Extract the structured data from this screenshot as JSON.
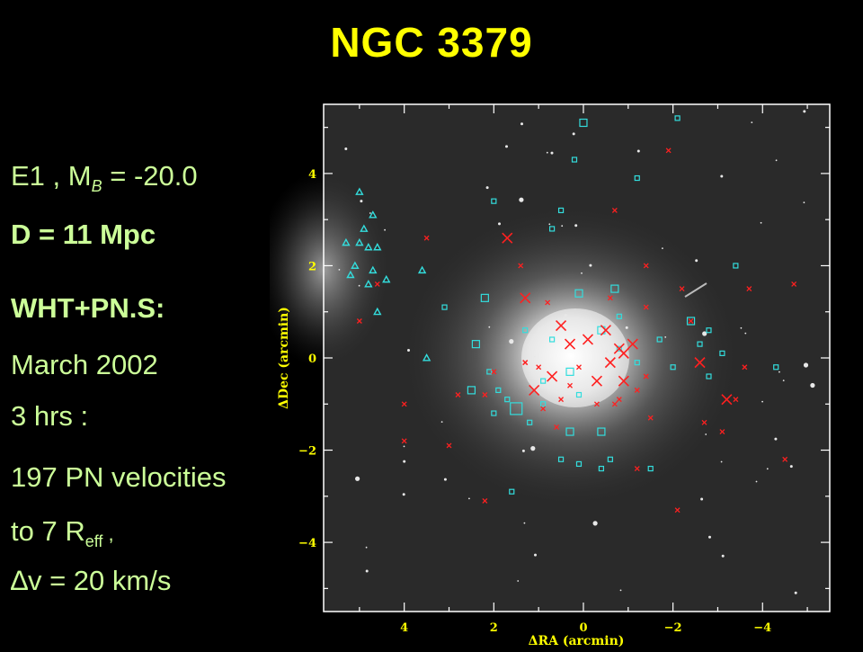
{
  "title": "NGC 3379",
  "info": {
    "type_prefix": "E1 ,  M",
    "mag_sub": "B",
    "mag_value": " = -20.0",
    "distance": "D = 11 Mpc",
    "instrument": "WHT+PN.S:",
    "date": "March 2002",
    "duration": "3 hrs :",
    "pn_count": "197 PN velocities",
    "reach_prefix": " to 7 R",
    "reach_sub": "eff",
    "reach_suffix": " ,",
    "dv_symbol": "∆",
    "dv_rest": "v = 20 km/s"
  },
  "chart_data": {
    "type": "scatter",
    "xlabel": "ΔRA (arcmin)",
    "ylabel": "ΔDec (arcmin)",
    "xlim": [
      5.8,
      -5.5
    ],
    "ylim": [
      -5.5,
      5.5
    ],
    "xticks": [
      4,
      2,
      0,
      -2,
      -4
    ],
    "yticks": [
      4,
      2,
      0,
      -2,
      -4
    ],
    "xtick_labels": [
      "4",
      "2",
      "0",
      "−2",
      "−4"
    ],
    "ytick_labels": [
      "4",
      "2",
      "0",
      "−2",
      "−4"
    ],
    "grid": false,
    "colors": {
      "red": "#ff2020",
      "cyan": "#33dddd",
      "axes": "#ffffff",
      "label": "#ffff00"
    },
    "series": [
      {
        "marker": "square",
        "color": "cyan",
        "points": [
          [
            0.0,
            5.1,
            1
          ],
          [
            -2.1,
            5.2,
            0
          ],
          [
            0.2,
            4.3,
            0
          ],
          [
            -1.2,
            3.9,
            0
          ],
          [
            2.0,
            3.4,
            0
          ],
          [
            0.5,
            3.2,
            0
          ],
          [
            0.7,
            2.8,
            0
          ],
          [
            -3.4,
            2.0,
            0
          ],
          [
            2.2,
            1.3,
            1
          ],
          [
            3.1,
            1.1,
            0
          ],
          [
            0.1,
            1.4,
            1
          ],
          [
            -0.8,
            0.9,
            0
          ],
          [
            -0.7,
            1.5,
            1
          ],
          [
            -2.4,
            0.8,
            1
          ],
          [
            -2.8,
            0.6,
            0
          ],
          [
            -3.1,
            0.1,
            0
          ],
          [
            -4.3,
            -0.2,
            0
          ],
          [
            2.4,
            0.3,
            1
          ],
          [
            2.1,
            -0.3,
            0
          ],
          [
            2.5,
            -0.7,
            1
          ],
          [
            1.9,
            -0.7,
            0
          ],
          [
            1.7,
            -0.9,
            0
          ],
          [
            2.0,
            -1.2,
            0
          ],
          [
            1.5,
            -1.1,
            2
          ],
          [
            1.2,
            -1.4,
            0
          ],
          [
            0.9,
            -1.0,
            0
          ],
          [
            0.3,
            -1.6,
            1
          ],
          [
            -0.4,
            -1.6,
            1
          ],
          [
            -0.6,
            -2.2,
            0
          ],
          [
            -1.5,
            -2.4,
            0
          ],
          [
            0.5,
            -2.2,
            0
          ],
          [
            0.1,
            -2.3,
            0
          ],
          [
            -0.4,
            -2.4,
            0
          ],
          [
            1.6,
            -2.9,
            0
          ],
          [
            -2.8,
            -0.4,
            0
          ],
          [
            -2.6,
            0.3,
            0
          ],
          [
            -1.7,
            0.4,
            0
          ],
          [
            -2.0,
            -0.2,
            0
          ],
          [
            0.9,
            -0.5,
            0
          ],
          [
            0.3,
            -0.3,
            1
          ],
          [
            -0.4,
            0.6,
            1
          ],
          [
            -0.8,
            0.2,
            0
          ],
          [
            0.7,
            0.4,
            0
          ],
          [
            -1.2,
            -0.1,
            0
          ],
          [
            0.1,
            -0.8,
            0
          ],
          [
            1.3,
            0.6,
            0
          ]
        ]
      },
      {
        "marker": "triangle",
        "color": "cyan",
        "points": [
          [
            5.0,
            3.6
          ],
          [
            4.7,
            3.1
          ],
          [
            4.9,
            2.8
          ],
          [
            5.0,
            2.5
          ],
          [
            4.8,
            2.4
          ],
          [
            5.3,
            2.5
          ],
          [
            4.6,
            2.4
          ],
          [
            5.1,
            2.0
          ],
          [
            4.7,
            1.9
          ],
          [
            4.4,
            1.7
          ],
          [
            4.8,
            1.6
          ],
          [
            3.6,
            1.9
          ],
          [
            4.6,
            1.0
          ],
          [
            3.5,
            0.0
          ],
          [
            5.2,
            1.8
          ]
        ]
      },
      {
        "marker": "cross",
        "color": "red",
        "points": [
          [
            1.7,
            2.6,
            1
          ],
          [
            -0.7,
            3.2,
            0
          ],
          [
            -1.9,
            4.5,
            0
          ],
          [
            3.5,
            2.6,
            0
          ],
          [
            4.6,
            1.6,
            0
          ],
          [
            5.0,
            0.8,
            0
          ],
          [
            1.3,
            1.3,
            1
          ],
          [
            0.8,
            1.2,
            0
          ],
          [
            0.5,
            0.7,
            1
          ],
          [
            0.3,
            0.3,
            1
          ],
          [
            -0.1,
            0.4,
            1
          ],
          [
            -0.5,
            0.6,
            1
          ],
          [
            -0.8,
            0.2,
            1
          ],
          [
            -0.6,
            -0.1,
            1
          ],
          [
            -0.9,
            0.1,
            1
          ],
          [
            -1.1,
            0.3,
            1
          ],
          [
            -0.3,
            -0.5,
            1
          ],
          [
            0.1,
            -0.2,
            0
          ],
          [
            0.3,
            -0.6,
            0
          ],
          [
            0.7,
            -0.4,
            1
          ],
          [
            1.0,
            -0.2,
            0
          ],
          [
            1.3,
            -0.1,
            0
          ],
          [
            1.1,
            -0.7,
            1
          ],
          [
            0.9,
            -1.1,
            0
          ],
          [
            -0.9,
            -0.5,
            1
          ],
          [
            -1.2,
            -0.7,
            0
          ],
          [
            -0.8,
            -0.9,
            0
          ],
          [
            -1.4,
            -0.4,
            0
          ],
          [
            -2.6,
            -0.1,
            1
          ],
          [
            -3.2,
            -0.9,
            1
          ],
          [
            -3.4,
            -0.9,
            0
          ],
          [
            -3.6,
            -0.2,
            0
          ],
          [
            -2.7,
            -1.4,
            0
          ],
          [
            -3.1,
            -1.6,
            0
          ],
          [
            2.2,
            -0.8,
            0
          ],
          [
            2.8,
            -0.8,
            0
          ],
          [
            2.0,
            -0.3,
            0
          ],
          [
            3.0,
            -1.9,
            0
          ],
          [
            4.0,
            -1.8,
            0
          ],
          [
            -1.2,
            -2.4,
            0
          ],
          [
            -2.1,
            -3.3,
            0
          ],
          [
            -4.5,
            -2.2,
            0
          ],
          [
            -2.2,
            1.5,
            0
          ],
          [
            -3.7,
            1.5,
            0
          ],
          [
            -4.7,
            1.6,
            0
          ],
          [
            2.2,
            -3.1,
            0
          ],
          [
            1.3,
            -0.1,
            0
          ],
          [
            0.5,
            -0.9,
            0
          ],
          [
            -0.7,
            -1.0,
            0
          ],
          [
            -1.4,
            1.1,
            0
          ],
          [
            -2.4,
            0.8,
            0
          ],
          [
            -1.4,
            2.0,
            0
          ],
          [
            1.4,
            2.0,
            0
          ],
          [
            -0.6,
            1.3,
            0
          ],
          [
            -1.5,
            -1.3,
            0
          ],
          [
            -0.3,
            -1.0,
            0
          ],
          [
            0.6,
            -1.5,
            0
          ],
          [
            4.0,
            -1.0,
            0
          ]
        ]
      }
    ]
  }
}
